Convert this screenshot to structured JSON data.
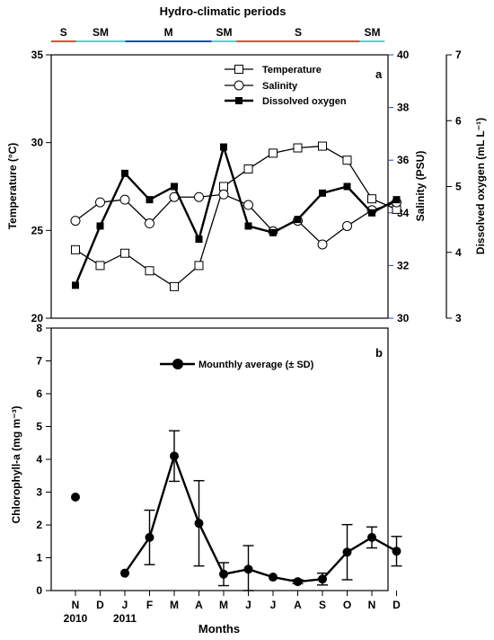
{
  "chart_data": [
    {
      "panel": "a",
      "type": "line",
      "title": "Hydro-climatic periods",
      "periods": [
        {
          "label": "S",
          "start": 0,
          "end": 1,
          "color": "#e8473a"
        },
        {
          "label": "SM",
          "start": 1,
          "end": 3,
          "color": "#3fe0c8"
        },
        {
          "label": "M",
          "start": 3,
          "end": 6.5,
          "color": "#1a48b8"
        },
        {
          "label": "SM",
          "start": 6.5,
          "end": 7.5,
          "color": "#3fe0c8"
        },
        {
          "label": "S",
          "start": 7.5,
          "end": 12.5,
          "color": "#e8473a"
        },
        {
          "label": "SM",
          "start": 12.5,
          "end": 13.5,
          "color": "#3fe0c8"
        }
      ],
      "categories": [
        "N",
        "D",
        "J",
        "F",
        "M",
        "A",
        "M",
        "J",
        "J",
        "A",
        "S",
        "O",
        "N",
        "D"
      ],
      "ylabel": "Temperature (°C)",
      "ylabel2": "Salinity (PSU)",
      "ylabel3": "Dissolved oxygen (mL L⁻¹)",
      "ylim": [
        20,
        35
      ],
      "ylim2": [
        30,
        40
      ],
      "ylim3": [
        3,
        7
      ],
      "yticks": [
        20,
        25,
        30,
        35
      ],
      "yticks2": [
        30,
        32,
        34,
        36,
        38,
        40
      ],
      "yticks3": [
        3,
        4,
        5,
        6,
        7
      ],
      "legend": [
        "Temperature",
        "Salinity",
        "Dissolved oxygen"
      ],
      "series": [
        {
          "name": "Temperature",
          "axis": "left",
          "values": [
            23.9,
            23.0,
            23.7,
            22.7,
            21.8,
            23.0,
            27.5,
            28.5,
            29.4,
            29.7,
            29.8,
            29.0,
            26.8,
            26.2
          ]
        },
        {
          "name": "Salinity",
          "axis": "right",
          "values": [
            33.7,
            34.4,
            34.5,
            33.6,
            34.6,
            34.6,
            34.7,
            34.3,
            33.3,
            33.7,
            32.8,
            33.5,
            34.1,
            34.4
          ]
        },
        {
          "name": "Dissolved oxygen",
          "axis": "right2",
          "values": [
            3.5,
            4.4,
            5.2,
            4.8,
            5.0,
            4.2,
            5.6,
            4.4,
            4.3,
            4.5,
            4.9,
            5.0,
            4.6,
            4.8
          ]
        }
      ]
    },
    {
      "panel": "b",
      "type": "line",
      "categories": [
        "N",
        "D",
        "J",
        "F",
        "M",
        "A",
        "M",
        "J",
        "J",
        "A",
        "S",
        "O",
        "N",
        "D"
      ],
      "year_labels": [
        "2010",
        "2011"
      ],
      "xlabel": "Months",
      "ylabel": "Chlorophyll-a (mg m⁻³)",
      "ylim": [
        0,
        8
      ],
      "yticks": [
        0,
        1,
        2,
        3,
        4,
        5,
        6,
        7,
        8
      ],
      "legend": [
        "Mounthly average (± SD)"
      ],
      "series": [
        {
          "name": "Mounthly average (± SD)",
          "values": [
            2.85,
            null,
            0.53,
            1.62,
            4.1,
            2.05,
            0.5,
            0.65,
            0.41,
            0.27,
            0.35,
            1.17,
            1.62,
            1.2
          ],
          "sd": [
            0,
            null,
            0,
            0.83,
            0.77,
            1.3,
            0.35,
            0.72,
            0,
            0.06,
            0.18,
            0.84,
            0.32,
            0.45
          ]
        }
      ]
    }
  ]
}
